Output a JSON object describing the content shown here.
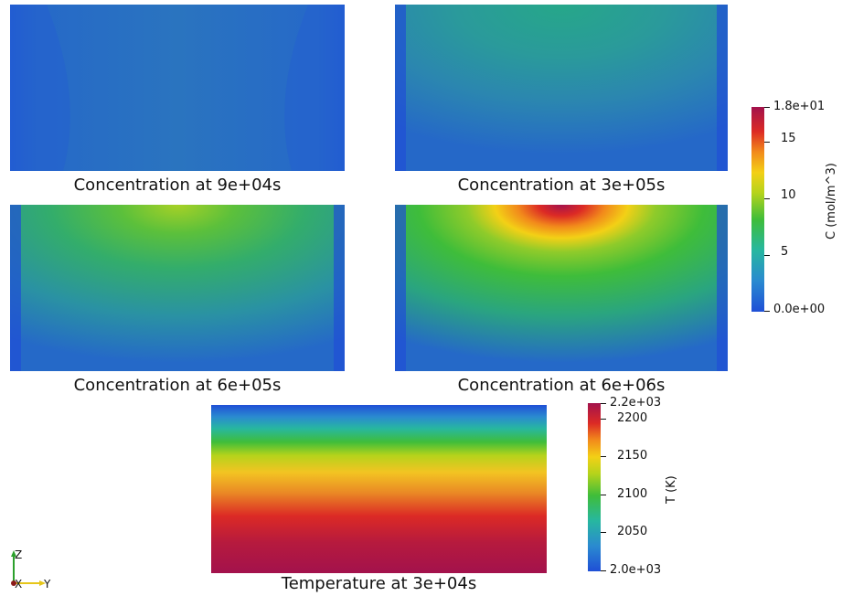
{
  "captions": {
    "c1": "Concentration at 9e+04s",
    "c2": "Concentration at 3e+05s",
    "c3": "Concentration at 6e+05s",
    "c4": "Concentration at 6e+06s",
    "t1": "Temperature at 3e+04s"
  },
  "colorbar_conc": {
    "title": "C (mol/m^3)",
    "ticks": [
      "1.8e+01",
      "15",
      "10",
      "5",
      "0.0e+00"
    ]
  },
  "colorbar_temp": {
    "title": "T (K)",
    "ticks": [
      "2.2e+03",
      "2200",
      "2150",
      "2100",
      "2050",
      "2.0e+03"
    ]
  },
  "axes": {
    "z": "Z",
    "x": "X",
    "y": "Y"
  },
  "colormap": [
    "#1f4fd6",
    "#2a8ad0",
    "#27b7a0",
    "#3fbd3a",
    "#b5d31b",
    "#f3d016",
    "#f28a1b",
    "#dc2a25",
    "#a3124c"
  ]
}
